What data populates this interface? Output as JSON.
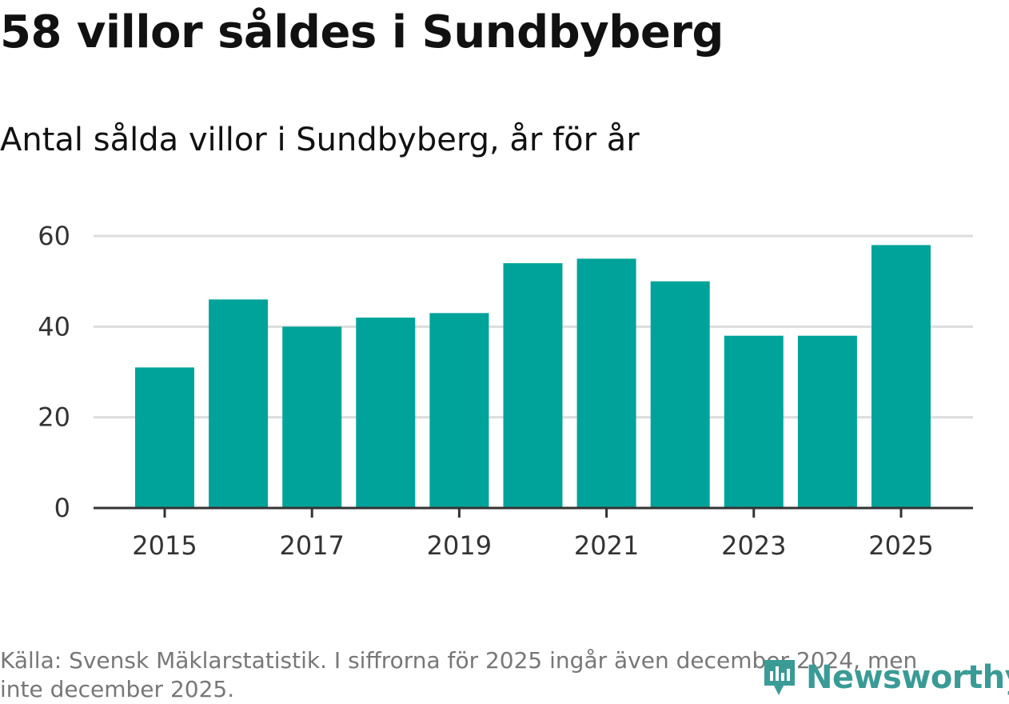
{
  "header": {
    "title": "58 villor såldes i Sundbyberg",
    "subtitle": "Antal sålda villor i Sundbyberg, år för år"
  },
  "footer": {
    "source": "Källa: Svensk Mäklarstatistik. I siffrorna för 2025 ingår även december 2024, men inte december 2025."
  },
  "logo": {
    "text": "Newsworthy",
    "icon": "newsworthy-logo-icon"
  },
  "colors": {
    "bar": "#00a39a",
    "grid": "#dddddd",
    "axis": "#333333",
    "logo": "#3a9b96"
  },
  "chart_data": {
    "type": "bar",
    "title": "Antal sålda villor i Sundbyberg, år för år",
    "xlabel": "",
    "ylabel": "",
    "categories": [
      "2015",
      "2016",
      "2017",
      "2018",
      "2019",
      "2020",
      "2021",
      "2022",
      "2023",
      "2024",
      "2025"
    ],
    "values": [
      31,
      46,
      40,
      42,
      43,
      54,
      55,
      50,
      38,
      38,
      58
    ],
    "x_tick_labels": [
      "2015",
      "2017",
      "2019",
      "2021",
      "2023",
      "2025"
    ],
    "y_ticks": [
      0,
      20,
      40,
      60
    ],
    "ylim": [
      0,
      60
    ],
    "grid": true
  }
}
